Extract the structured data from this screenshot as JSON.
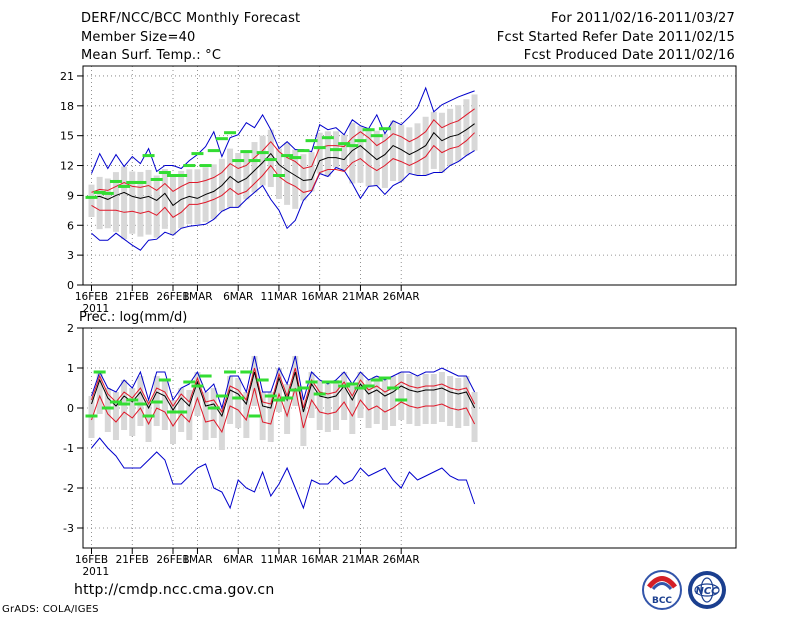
{
  "header": {
    "title": "DERF/NCC/BCC Monthly Forecast",
    "member_size": "Member Size=40",
    "variable": "Mean Surf. Temp.: °C",
    "period": "For 2011/02/16-2011/03/27",
    "refer_date": "Fcst Started Refer Date 2011/02/15",
    "produced_date": "Fcst Produced Date 2011/02/16"
  },
  "footer": {
    "url": "http://cmdp.ncc.cma.gov.cn",
    "credit": "GrADS: COLA/IGES",
    "logo_bcc_text": "BCC",
    "logo_ncc_text": "NCC"
  },
  "colors": {
    "ensemble_mean": "#000000",
    "spread_band": "#e0192a",
    "extreme_envelope": "#0000cc",
    "observed": "#33dd33",
    "quartile_bar": "#d8d8d8"
  },
  "chart_data": [
    {
      "type": "line",
      "title": "Mean Surf. Temp.: °C",
      "x_tick_labels": [
        "16FEB",
        "21FEB",
        "26FEB",
        "1MAR",
        "6MAR",
        "11MAR",
        "16MAR",
        "21MAR",
        "26MAR"
      ],
      "x_tick_days": [
        1,
        6,
        11,
        14,
        19,
        24,
        29,
        34,
        39
      ],
      "year_label": "2011",
      "y_ticks": [
        0,
        3,
        6,
        9,
        12,
        15,
        18,
        21
      ],
      "ylim": [
        0,
        22
      ],
      "grid": true,
      "series": [
        {
          "name": "ensemble mean",
          "role": "mean",
          "values": [
            8.8,
            8.9,
            8.6,
            9.0,
            9.3,
            8.9,
            8.7,
            8.9,
            8.5,
            9.2,
            8.0,
            8.6,
            8.9,
            8.7,
            9.1,
            9.4,
            10.0,
            10.9,
            10.3,
            10.7,
            11.5,
            12.3,
            13.2,
            12.1,
            11.5,
            11.0,
            10.5,
            10.6,
            12.5,
            12.8,
            12.8,
            12.6,
            13.5,
            14.0,
            13.3,
            12.6,
            13.1,
            14.0,
            13.6,
            13.1,
            13.5,
            14.0,
            15.3,
            14.5,
            14.9,
            15.1,
            15.6,
            16.2
          ]
        },
        {
          "name": "spread upper",
          "role": "upper",
          "values": [
            9.3,
            9.6,
            9.5,
            9.9,
            10.3,
            9.9,
            9.8,
            10.0,
            9.5,
            10.2,
            9.4,
            9.9,
            10.3,
            10.3,
            10.5,
            10.8,
            11.3,
            12.2,
            11.7,
            12.0,
            12.8,
            13.5,
            14.4,
            13.4,
            12.8,
            12.4,
            11.7,
            11.9,
            13.8,
            14.0,
            14.0,
            13.9,
            14.8,
            15.4,
            14.8,
            14.0,
            14.5,
            15.2,
            14.9,
            14.4,
            14.8,
            15.4,
            16.6,
            15.8,
            16.2,
            16.5,
            17.1,
            17.7
          ]
        },
        {
          "name": "spread lower",
          "role": "lower",
          "values": [
            8.0,
            7.5,
            7.5,
            7.5,
            7.3,
            7.4,
            7.2,
            7.4,
            7.0,
            7.8,
            6.8,
            7.3,
            8.1,
            8.1,
            8.3,
            8.6,
            9.0,
            9.7,
            9.1,
            9.4,
            10.2,
            11.0,
            12.0,
            10.9,
            10.3,
            9.9,
            9.3,
            9.5,
            11.3,
            11.6,
            11.6,
            11.4,
            12.3,
            12.7,
            12.0,
            11.5,
            12.0,
            12.7,
            12.4,
            12.0,
            12.4,
            12.9,
            14.0,
            13.3,
            13.7,
            13.9,
            14.5,
            15.3
          ]
        },
        {
          "name": "maximum",
          "role": "max",
          "values": [
            11.2,
            13.2,
            11.7,
            13.1,
            11.9,
            12.9,
            12.2,
            13.7,
            11.4,
            12.0,
            12.0,
            11.7,
            12.5,
            13.1,
            13.9,
            15.4,
            12.9,
            14.8,
            15.1,
            16.3,
            15.8,
            17.1,
            15.6,
            13.7,
            14.4,
            13.6,
            13.6,
            13.4,
            16.1,
            15.6,
            15.8,
            15.1,
            16.6,
            16.0,
            15.7,
            17.1,
            15.2,
            16.5,
            16.1,
            16.9,
            17.8,
            19.8,
            17.4,
            18.1,
            18.5,
            18.9,
            19.2,
            19.5
          ]
        },
        {
          "name": "minimum",
          "role": "min",
          "values": [
            5.2,
            4.5,
            4.5,
            5.2,
            4.6,
            4.0,
            3.5,
            4.5,
            4.6,
            5.3,
            5.0,
            5.7,
            5.9,
            6.0,
            6.1,
            6.6,
            7.4,
            7.8,
            7.8,
            8.6,
            9.3,
            10.0,
            8.6,
            7.5,
            5.7,
            6.5,
            8.5,
            9.4,
            11.2,
            10.9,
            11.8,
            11.5,
            10.2,
            8.7,
            9.9,
            10.0,
            9.1,
            10.0,
            10.4,
            11.2,
            11.0,
            11.0,
            11.3,
            11.3,
            12.0,
            12.4,
            13.0,
            13.5
          ]
        },
        {
          "name": "observed",
          "role": "obs",
          "values": [
            8.8,
            9.3,
            9.2,
            10.4,
            9.9,
            10.3,
            10.3,
            13.0,
            10.6,
            11.3,
            11.0,
            11.0,
            12.0,
            13.2,
            12.0,
            13.5,
            14.7,
            15.3,
            12.5,
            13.4,
            12.5,
            13.3,
            12.6,
            11.0,
            13.0,
            12.8,
            13.5,
            14.5,
            13.8,
            14.8,
            13.6,
            14.2,
            14.0,
            14.5,
            15.6,
            15.0,
            15.7
          ]
        }
      ]
    },
    {
      "type": "line",
      "title": "Prec.: log(mm/d)",
      "x_tick_labels": [
        "16FEB",
        "21FEB",
        "26FEB",
        "1MAR",
        "6MAR",
        "11MAR",
        "16MAR",
        "21MAR",
        "26MAR"
      ],
      "x_tick_days": [
        1,
        6,
        11,
        14,
        19,
        24,
        29,
        34,
        39
      ],
      "year_label": "2011",
      "y_ticks": [
        -3,
        -2,
        -1,
        0,
        1,
        2
      ],
      "ylim": [
        -3.5,
        2
      ],
      "grid": true,
      "series": [
        {
          "name": "ensemble mean",
          "role": "mean",
          "values": [
            0.1,
            0.7,
            0.25,
            0.05,
            0.3,
            0.15,
            0.4,
            0.0,
            0.4,
            0.3,
            -0.05,
            0.25,
            0.05,
            0.65,
            0.05,
            0.1,
            -0.2,
            0.45,
            0.35,
            0.1,
            0.9,
            0.05,
            0.0,
            0.75,
            0.2,
            0.9,
            -0.1,
            0.6,
            0.3,
            0.25,
            0.3,
            0.55,
            0.2,
            0.6,
            0.35,
            0.45,
            0.3,
            0.4,
            0.55,
            0.45,
            0.4,
            0.45,
            0.45,
            0.5,
            0.4,
            0.35,
            0.4,
            0.0
          ]
        },
        {
          "name": "spread upper",
          "role": "upper",
          "values": [
            0.2,
            0.8,
            0.35,
            0.15,
            0.4,
            0.25,
            0.5,
            0.1,
            0.5,
            0.4,
            0.05,
            0.35,
            0.15,
            0.75,
            0.15,
            0.2,
            -0.1,
            0.55,
            0.45,
            0.2,
            1.0,
            0.15,
            0.1,
            0.85,
            0.3,
            1.0,
            0.0,
            0.7,
            0.4,
            0.35,
            0.4,
            0.65,
            0.3,
            0.7,
            0.45,
            0.55,
            0.4,
            0.5,
            0.65,
            0.55,
            0.5,
            0.55,
            0.55,
            0.6,
            0.5,
            0.45,
            0.5,
            0.1
          ]
        },
        {
          "name": "spread lower",
          "role": "lower",
          "values": [
            -0.3,
            0.3,
            -0.15,
            -0.35,
            -0.1,
            -0.25,
            0.0,
            -0.4,
            0.0,
            -0.1,
            -0.45,
            -0.15,
            -0.35,
            0.25,
            -0.35,
            -0.3,
            -0.6,
            0.05,
            -0.05,
            -0.3,
            0.5,
            -0.35,
            -0.4,
            0.35,
            -0.2,
            0.5,
            -0.5,
            0.2,
            -0.1,
            -0.15,
            -0.1,
            0.15,
            -0.2,
            0.2,
            -0.05,
            0.05,
            -0.1,
            0.0,
            0.15,
            0.05,
            0.0,
            0.05,
            0.05,
            0.1,
            0.0,
            -0.05,
            0.0,
            -0.4
          ]
        },
        {
          "name": "maximum",
          "role": "max",
          "values": [
            0.3,
            0.9,
            0.5,
            0.4,
            0.7,
            0.5,
            0.9,
            0.2,
            0.9,
            0.9,
            0.2,
            0.5,
            0.6,
            0.9,
            0.4,
            0.6,
            0.0,
            0.8,
            0.8,
            0.4,
            1.3,
            0.4,
            0.4,
            1.0,
            0.6,
            1.3,
            0.2,
            0.9,
            0.7,
            0.6,
            0.7,
            0.9,
            0.6,
            0.9,
            0.7,
            0.8,
            0.7,
            0.8,
            0.9,
            0.9,
            0.8,
            0.9,
            0.9,
            1.0,
            0.9,
            0.8,
            0.8,
            0.4
          ]
        },
        {
          "name": "minimum",
          "role": "min",
          "values": [
            -1.0,
            -0.75,
            -1.0,
            -1.2,
            -1.5,
            -1.5,
            -1.5,
            -1.3,
            -1.1,
            -1.3,
            -1.9,
            -1.9,
            -1.7,
            -1.5,
            -1.4,
            -2.0,
            -2.1,
            -2.5,
            -1.8,
            -2.0,
            -2.1,
            -1.6,
            -2.2,
            -1.9,
            -1.5,
            -2.0,
            -2.5,
            -1.8,
            -1.9,
            -1.9,
            -1.7,
            -1.9,
            -1.8,
            -1.5,
            -1.7,
            -1.6,
            -1.5,
            -1.8,
            -2.0,
            -1.6,
            -1.8,
            -1.7,
            -1.6,
            -1.5,
            -1.7,
            -1.8,
            -1.8,
            -2.4
          ]
        },
        {
          "name": "observed",
          "role": "obs",
          "values": [
            -0.2,
            0.9,
            0.0,
            0.15,
            0.1,
            0.2,
            0.1,
            -0.2,
            0.15,
            0.7,
            -0.1,
            -0.1,
            0.65,
            0.55,
            0.8,
            0.0,
            0.3,
            0.9,
            0.25,
            0.9,
            -0.2,
            0.7,
            0.3,
            0.2,
            0.25,
            0.45,
            0.5,
            0.65,
            0.35,
            0.65,
            0.65,
            0.55,
            0.6,
            0.5,
            0.55,
            0.7,
            0.75,
            0.5,
            0.2
          ]
        }
      ]
    }
  ]
}
